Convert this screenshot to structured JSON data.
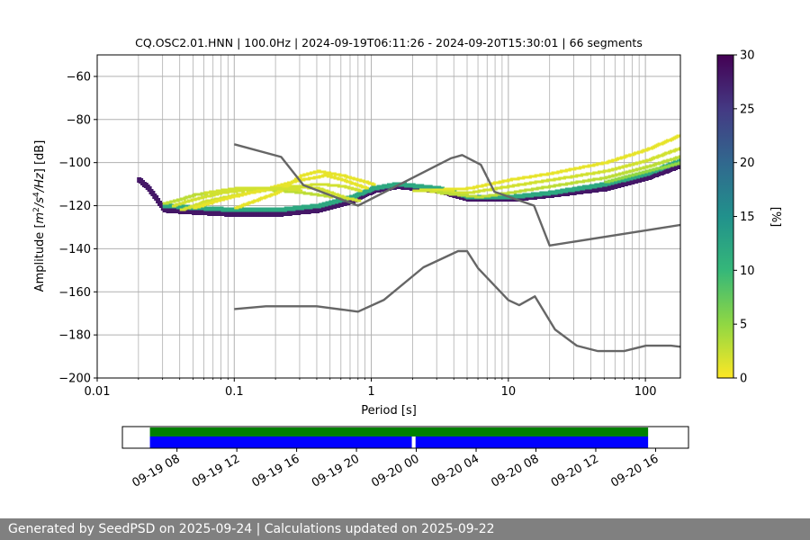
{
  "chart_data": [
    {
      "type": "heatmap",
      "title": "CQ.OSC2.01.HNN | 100.0Hz | 2024-09-19T06:11:26 - 2024-09-20T15:30:01 | 66 segments",
      "xlabel": "Period [s]",
      "ylabel": "Amplitude [m²/s⁴/Hz] [dB]",
      "x_scale": "log",
      "xlim": [
        0.01,
        180
      ],
      "ylim": [
        -200,
        -50
      ],
      "grid": true,
      "x_ticks": [
        {
          "value": 0.01,
          "label": "0.01"
        },
        {
          "value": 0.1,
          "label": "0.1"
        },
        {
          "value": 1,
          "label": "1"
        },
        {
          "value": 10,
          "label": "10"
        },
        {
          "value": 100,
          "label": "100"
        }
      ],
      "y_ticks": [
        {
          "value": -60,
          "label": "−60"
        },
        {
          "value": -80,
          "label": "−80"
        },
        {
          "value": -100,
          "label": "−100"
        },
        {
          "value": -120,
          "label": "−120"
        },
        {
          "value": -140,
          "label": "−140"
        },
        {
          "value": -160,
          "label": "−160"
        },
        {
          "value": -180,
          "label": "−180"
        },
        {
          "value": -200,
          "label": "−200"
        }
      ],
      "colorbar": {
        "label": "[%]",
        "range": [
          0,
          30
        ],
        "ticks": [
          {
            "value": 0,
            "label": "0"
          },
          {
            "value": 5,
            "label": "5"
          },
          {
            "value": 10,
            "label": "10"
          },
          {
            "value": 15,
            "label": "15"
          },
          {
            "value": 20,
            "label": "20"
          },
          {
            "value": 25,
            "label": "25"
          },
          {
            "value": 30,
            "label": "30"
          }
        ],
        "colormap": [
          "#fde725",
          "#90d743",
          "#35b779",
          "#21918c",
          "#31688e",
          "#443983",
          "#440154"
        ]
      },
      "heat_bands": [
        {
          "name": "main",
          "percent": 28,
          "points": [
            [
              0.0195,
              -108
            ],
            [
              0.023,
              -112
            ],
            [
              0.03,
              -122
            ],
            [
              0.05,
              -123
            ],
            [
              0.1,
              -124
            ],
            [
              0.2,
              -124
            ],
            [
              0.4,
              -122
            ],
            [
              0.7,
              -118
            ],
            [
              1,
              -113
            ],
            [
              1.5,
              -111
            ],
            [
              3,
              -113
            ],
            [
              5,
              -117
            ],
            [
              10,
              -117
            ],
            [
              20,
              -115
            ],
            [
              50,
              -112
            ],
            [
              100,
              -107
            ],
            [
              180,
              -101
            ]
          ]
        },
        {
          "name": "main-spread",
          "percent": 12,
          "points": [
            [
              0.03,
              -120
            ],
            [
              0.05,
              -121
            ],
            [
              0.1,
              -122
            ],
            [
              0.2,
              -122
            ],
            [
              0.4,
              -120
            ],
            [
              0.7,
              -116
            ],
            [
              1,
              -112
            ],
            [
              1.5,
              -110
            ],
            [
              3,
              -112
            ],
            [
              5,
              -116
            ],
            [
              10,
              -116
            ],
            [
              20,
              -114
            ],
            [
              50,
              -110
            ],
            [
              100,
              -105
            ],
            [
              180,
              -99
            ]
          ]
        },
        {
          "name": "low-1",
          "percent": 3,
          "points": [
            [
              0.03,
              -119
            ],
            [
              0.04,
              -117
            ],
            [
              0.05,
              -115
            ],
            [
              0.08,
              -113
            ],
            [
              0.12,
              -112
            ],
            [
              0.2,
              -113
            ],
            [
              0.3,
              -114
            ],
            [
              0.4,
              -115
            ],
            [
              0.5,
              -116
            ]
          ]
        },
        {
          "name": "low-2",
          "percent": 2,
          "points": [
            [
              0.035,
              -120
            ],
            [
              0.05,
              -117
            ],
            [
              0.08,
              -114
            ],
            [
              0.15,
              -112
            ],
            [
              0.25,
              -111
            ],
            [
              0.4,
              -112
            ],
            [
              0.6,
              -116
            ],
            [
              0.8,
              -118
            ]
          ]
        },
        {
          "name": "low-3",
          "percent": 2,
          "points": [
            [
              0.04,
              -122
            ],
            [
              0.06,
              -118
            ],
            [
              0.1,
              -115
            ],
            [
              0.2,
              -112
            ],
            [
              0.4,
              -110
            ],
            [
              0.6,
              -111
            ],
            [
              0.8,
              -113
            ]
          ]
        },
        {
          "name": "low-4",
          "percent": 1,
          "points": [
            [
              0.05,
              -121
            ],
            [
              0.08,
              -117
            ],
            [
              0.15,
              -113
            ],
            [
              0.3,
              -108
            ],
            [
              0.45,
              -106
            ],
            [
              0.6,
              -108
            ],
            [
              0.9,
              -112
            ]
          ]
        },
        {
          "name": "low-5",
          "percent": 1,
          "points": [
            [
              0.1,
              -121
            ],
            [
              0.2,
              -114
            ],
            [
              0.3,
              -106
            ],
            [
              0.4,
              -104
            ],
            [
              0.6,
              -106
            ],
            [
              1,
              -110
            ]
          ]
        },
        {
          "name": "low-6",
          "percent": 2,
          "points": [
            [
              0.06,
              -114
            ],
            [
              0.1,
              -112
            ],
            [
              0.2,
              -112
            ],
            [
              0.3,
              -113
            ]
          ]
        },
        {
          "name": "upper-1",
          "percent": 1,
          "points": [
            [
              2,
              -113
            ],
            [
              5,
              -112
            ],
            [
              10,
              -108
            ],
            [
              20,
              -105
            ],
            [
              50,
              -100
            ],
            [
              100,
              -94
            ],
            [
              180,
              -87
            ]
          ]
        },
        {
          "name": "upper-2",
          "percent": 2,
          "points": [
            [
              2,
              -113
            ],
            [
              5,
              -114
            ],
            [
              10,
              -111
            ],
            [
              20,
              -108
            ],
            [
              50,
              -104
            ],
            [
              100,
              -99
            ],
            [
              180,
              -93
            ]
          ]
        },
        {
          "name": "upper-3",
          "percent": 3,
          "points": [
            [
              3,
              -114
            ],
            [
              6,
              -116
            ],
            [
              10,
              -114
            ],
            [
              20,
              -111
            ],
            [
              50,
              -107
            ],
            [
              100,
              -102
            ],
            [
              180,
              -97
            ]
          ]
        },
        {
          "name": "upper-4",
          "percent": 5,
          "points": [
            [
              50,
              -109
            ],
            [
              100,
              -104
            ],
            [
              180,
              -100
            ]
          ]
        }
      ],
      "noise_models": [
        {
          "name": "upper",
          "x": [
            0.1,
            0.22,
            0.32,
            0.8,
            3.8,
            4.6,
            6.3,
            7.9,
            15.4,
            20,
            354.8
          ],
          "y": [
            -91.5,
            -97.4,
            -110.5,
            -120,
            -98,
            -96.5,
            -101,
            -113.5,
            -120,
            -138.5,
            -126
          ]
        },
        {
          "name": "lower",
          "x": [
            0.1,
            0.17,
            0.4,
            0.8,
            1.24,
            2.4,
            4.3,
            5,
            6,
            10,
            12,
            15.6,
            21.9,
            31.6,
            45,
            70,
            101,
            154,
            328
          ],
          "y": [
            -168,
            -166.7,
            -166.7,
            -169.2,
            -163.7,
            -148.6,
            -141.1,
            -141.1,
            -149,
            -163.8,
            -166.2,
            -162.1,
            -177.5,
            -185,
            -187.5,
            -187.5,
            -185,
            -185,
            -187.5
          ]
        }
      ]
    },
    {
      "type": "timeline",
      "x_ticks": [
        {
          "hour": 8,
          "label": "09-19 08"
        },
        {
          "hour": 12,
          "label": "09-19 12"
        },
        {
          "hour": 16,
          "label": "09-19 16"
        },
        {
          "hour": 20,
          "label": "09-19 20"
        },
        {
          "hour": 24,
          "label": "09-20 00"
        },
        {
          "hour": 28,
          "label": "09-20 04"
        },
        {
          "hour": 32,
          "label": "09-20 08"
        },
        {
          "hour": 36,
          "label": "09-20 12"
        },
        {
          "hour": 40,
          "label": "09-20 16"
        }
      ],
      "xlim_hours": [
        4.35,
        42.2
      ],
      "data_coverage": {
        "color": "#008000",
        "spans": [
          [
            6.19,
            39.5
          ]
        ]
      },
      "segments": {
        "color": "#0000ff",
        "spans": [
          [
            6.19,
            23.7
          ],
          [
            23.95,
            39.5
          ]
        ]
      }
    }
  ],
  "footer": {
    "text": "Generated by SeedPSD on 2025-09-24 | Calculations updated on 2025-09-22"
  }
}
